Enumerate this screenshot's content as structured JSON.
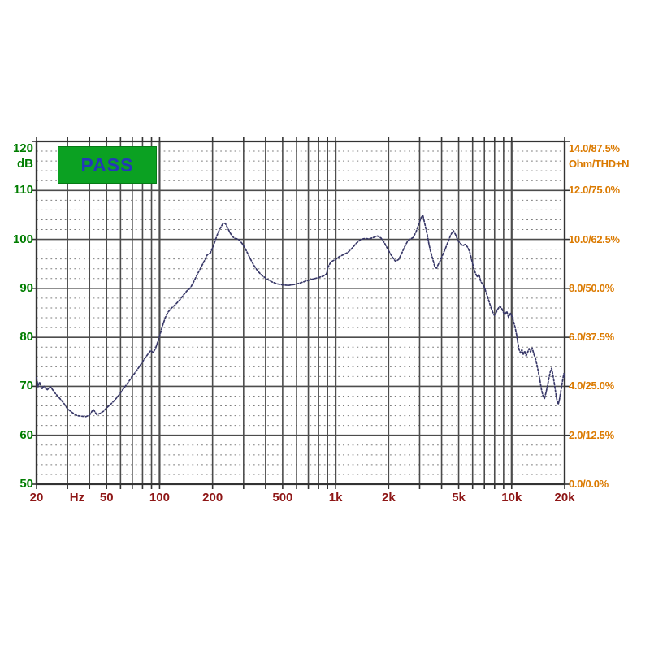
{
  "window": {
    "background": "#ffffff"
  },
  "pass_badge": {
    "label": "PASS",
    "background": "#0BA122",
    "border_color": "#067A16",
    "text_color": "#2438B8"
  },
  "chart_data": {
    "type": "line",
    "title": "",
    "legend": "none",
    "grid": {
      "major_color": "#4C4C4C",
      "minor_color": "#7D7D7D",
      "border_color": "#333333",
      "tick_color": "#333333"
    },
    "x_axis": {
      "unit_label": "Hz",
      "scale": "log",
      "min_hz": 20,
      "max_hz": 20000,
      "label_color": "#8E1616",
      "tick_labels": [
        {
          "text": "20",
          "hz": 20
        },
        {
          "text": "Hz",
          "hz": 34
        },
        {
          "text": "50",
          "hz": 50
        },
        {
          "text": "100",
          "hz": 100
        },
        {
          "text": "200",
          "hz": 200
        },
        {
          "text": "500",
          "hz": 500
        },
        {
          "text": "1k",
          "hz": 1000
        },
        {
          "text": "2k",
          "hz": 2000
        },
        {
          "text": "5k",
          "hz": 5000
        },
        {
          "text": "10k",
          "hz": 10000
        },
        {
          "text": "20k",
          "hz": 20000
        }
      ],
      "gridline_hz": [
        20,
        30,
        40,
        50,
        60,
        70,
        80,
        90,
        100,
        200,
        300,
        400,
        500,
        600,
        700,
        800,
        900,
        1000,
        2000,
        3000,
        4000,
        5000,
        6000,
        7000,
        8000,
        9000,
        10000,
        20000
      ],
      "decade_hz": [
        20,
        100,
        1000,
        10000,
        20000
      ]
    },
    "y_axis_left": {
      "unit_label": "dB",
      "min": 50,
      "max": 120,
      "major_step": 10,
      "minor_step": 2,
      "label_color": "#007D00",
      "tick_labels": [
        "120",
        "110",
        "100",
        "90",
        "80",
        "70",
        "60",
        "50"
      ]
    },
    "y_axis_right": {
      "unit_label": "Ohm/THD+N",
      "label_color": "#DB7A00",
      "tick_labels": [
        "14.0/87.5%",
        "12.0/75.0%",
        "10.0/62.5%",
        "8.0/50.0%",
        "6.0/37.5%",
        "4.0/25.0%",
        "2.0/12.5%",
        "0.0/0.0%"
      ]
    },
    "series": [
      {
        "name": "frequency-response",
        "color": "#383868",
        "style": "dotted",
        "points_hz_db": [
          [
            20,
            71.8
          ],
          [
            20.4,
            69.9
          ],
          [
            20.8,
            70.9
          ],
          [
            21.4,
            69.4
          ],
          [
            22,
            70.1
          ],
          [
            23,
            69.3
          ],
          [
            24,
            69.9
          ],
          [
            25.5,
            68.6
          ],
          [
            27,
            67.6
          ],
          [
            28.5,
            66.6
          ],
          [
            30,
            65.4
          ],
          [
            32,
            64.6
          ],
          [
            34,
            64.0
          ],
          [
            36,
            63.9
          ],
          [
            38,
            63.8
          ],
          [
            40,
            64.1
          ],
          [
            42,
            65.3
          ],
          [
            44,
            64.2
          ],
          [
            46,
            64.5
          ],
          [
            48,
            64.9
          ],
          [
            50,
            65.6
          ],
          [
            53,
            66.4
          ],
          [
            56,
            67.3
          ],
          [
            59,
            68.3
          ],
          [
            62,
            69.4
          ],
          [
            66,
            70.7
          ],
          [
            70,
            72.0
          ],
          [
            74,
            73.2
          ],
          [
            78,
            74.4
          ],
          [
            82,
            75.6
          ],
          [
            86,
            76.6
          ],
          [
            89,
            77.3
          ],
          [
            92,
            76.9
          ],
          [
            95,
            77.8
          ],
          [
            98,
            79.2
          ],
          [
            101,
            80.8
          ],
          [
            104,
            82.4
          ],
          [
            108,
            84.1
          ],
          [
            112,
            85.2
          ],
          [
            117,
            86.0
          ],
          [
            123,
            86.7
          ],
          [
            130,
            87.6
          ],
          [
            137,
            88.7
          ],
          [
            143,
            89.5
          ],
          [
            149,
            90.0
          ],
          [
            156,
            91.3
          ],
          [
            164,
            92.9
          ],
          [
            172,
            94.3
          ],
          [
            180,
            95.7
          ],
          [
            187,
            96.9
          ],
          [
            194,
            97.2
          ],
          [
            201,
            98.4
          ],
          [
            208,
            100.0
          ],
          [
            215,
            101.4
          ],
          [
            222,
            102.4
          ],
          [
            229,
            103.2
          ],
          [
            236,
            103.3
          ],
          [
            243,
            102.4
          ],
          [
            251,
            101.4
          ],
          [
            259,
            100.6
          ],
          [
            268,
            100.2
          ],
          [
            278,
            100.1
          ],
          [
            288,
            99.6
          ],
          [
            298,
            98.9
          ],
          [
            312,
            97.6
          ],
          [
            326,
            96.2
          ],
          [
            342,
            94.8
          ],
          [
            360,
            93.6
          ],
          [
            382,
            92.6
          ],
          [
            408,
            91.9
          ],
          [
            436,
            91.3
          ],
          [
            466,
            90.9
          ],
          [
            500,
            90.7
          ],
          [
            540,
            90.6
          ],
          [
            585,
            90.8
          ],
          [
            630,
            91.1
          ],
          [
            680,
            91.5
          ],
          [
            740,
            91.9
          ],
          [
            800,
            92.2
          ],
          [
            850,
            92.5
          ],
          [
            885,
            92.9
          ],
          [
            905,
            94.3
          ],
          [
            930,
            95.1
          ],
          [
            960,
            95.6
          ],
          [
            1000,
            95.9
          ],
          [
            1050,
            96.5
          ],
          [
            1110,
            96.9
          ],
          [
            1170,
            97.3
          ],
          [
            1240,
            98.2
          ],
          [
            1310,
            99.2
          ],
          [
            1390,
            100.0
          ],
          [
            1470,
            100.2
          ],
          [
            1550,
            100.1
          ],
          [
            1640,
            100.4
          ],
          [
            1730,
            100.7
          ],
          [
            1810,
            100.3
          ],
          [
            1900,
            99.2
          ],
          [
            2000,
            97.7
          ],
          [
            2100,
            96.4
          ],
          [
            2190,
            95.5
          ],
          [
            2280,
            95.9
          ],
          [
            2370,
            97.1
          ],
          [
            2460,
            98.4
          ],
          [
            2560,
            99.6
          ],
          [
            2660,
            100.1
          ],
          [
            2760,
            100.4
          ],
          [
            2860,
            101.5
          ],
          [
            2960,
            103.0
          ],
          [
            3060,
            104.4
          ],
          [
            3130,
            104.9
          ],
          [
            3220,
            103.0
          ],
          [
            3310,
            101.1
          ],
          [
            3390,
            99.0
          ],
          [
            3470,
            97.4
          ],
          [
            3560,
            96.0
          ],
          [
            3660,
            94.4
          ],
          [
            3740,
            94.1
          ],
          [
            3820,
            94.8
          ],
          [
            3920,
            95.6
          ],
          [
            4060,
            96.9
          ],
          [
            4210,
            98.2
          ],
          [
            4360,
            99.6
          ],
          [
            4510,
            100.9
          ],
          [
            4660,
            101.8
          ],
          [
            4810,
            100.9
          ],
          [
            4960,
            99.7
          ],
          [
            5110,
            99.2
          ],
          [
            5270,
            98.7
          ],
          [
            5450,
            99.0
          ],
          [
            5620,
            98.4
          ],
          [
            5780,
            97.4
          ],
          [
            5930,
            95.8
          ],
          [
            6080,
            94.2
          ],
          [
            6230,
            93.1
          ],
          [
            6380,
            92.3
          ],
          [
            6520,
            92.9
          ],
          [
            6670,
            91.4
          ],
          [
            6830,
            90.9
          ],
          [
            7000,
            90.2
          ],
          [
            7160,
            89.2
          ],
          [
            7330,
            88.1
          ],
          [
            7500,
            86.9
          ],
          [
            7670,
            85.9
          ],
          [
            7820,
            85.1
          ],
          [
            7970,
            84.5
          ],
          [
            8120,
            84.9
          ],
          [
            8320,
            85.7
          ],
          [
            8550,
            86.4
          ],
          [
            8760,
            86.0
          ],
          [
            8960,
            85.2
          ],
          [
            9160,
            84.6
          ],
          [
            9380,
            85.3
          ],
          [
            9600,
            84.1
          ],
          [
            9840,
            84.9
          ],
          [
            10060,
            84.2
          ],
          [
            10270,
            83.1
          ],
          [
            10480,
            81.9
          ],
          [
            10680,
            80.4
          ],
          [
            10840,
            78.9
          ],
          [
            11020,
            77.5
          ],
          [
            11230,
            76.8
          ],
          [
            11430,
            77.5
          ],
          [
            11640,
            76.4
          ],
          [
            11860,
            77.2
          ],
          [
            12080,
            76.2
          ],
          [
            12320,
            76.9
          ],
          [
            12560,
            77.7
          ],
          [
            12800,
            77.0
          ],
          [
            13090,
            77.8
          ],
          [
            13360,
            76.6
          ],
          [
            13650,
            75.7
          ],
          [
            13940,
            74.3
          ],
          [
            14210,
            72.8
          ],
          [
            14490,
            71.1
          ],
          [
            14780,
            69.3
          ],
          [
            15060,
            68.1
          ],
          [
            15360,
            67.5
          ],
          [
            15670,
            68.7
          ],
          [
            15980,
            70.1
          ],
          [
            16290,
            71.7
          ],
          [
            16590,
            73.0
          ],
          [
            16870,
            73.7
          ],
          [
            17160,
            72.3
          ],
          [
            17460,
            70.7
          ],
          [
            17760,
            68.9
          ],
          [
            18070,
            67.2
          ],
          [
            18380,
            66.3
          ],
          [
            18690,
            67.3
          ],
          [
            19010,
            68.9
          ],
          [
            19340,
            70.5
          ],
          [
            19620,
            71.9
          ],
          [
            19820,
            72.6
          ],
          [
            20000,
            71.8
          ]
        ]
      }
    ]
  }
}
